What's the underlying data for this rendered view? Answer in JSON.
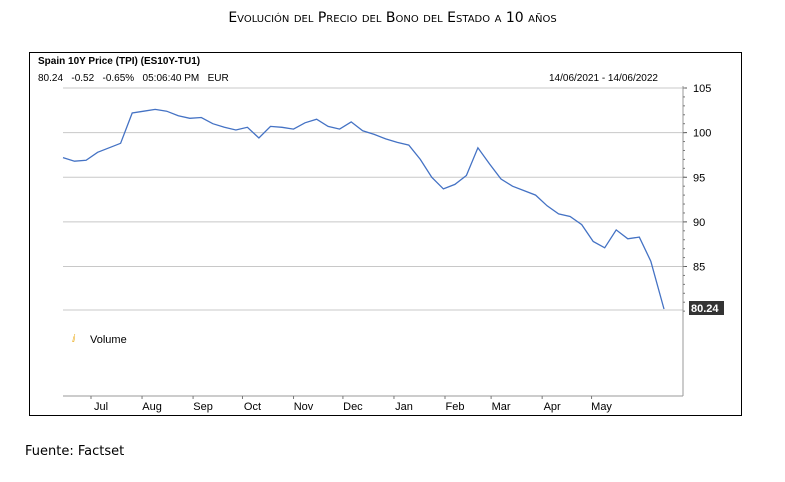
{
  "page_title": "Evolución del Precio del Bono del Estado a 10 años",
  "source_note": "Fuente: Factset",
  "chart_header": {
    "title": "Spain 10Y Price (TPI) (ES10Y-TU1)",
    "last": "80.24",
    "change": "-0.52",
    "change_pct": "-0.65%",
    "time": "05:06:40 PM",
    "currency": "EUR",
    "date_range": "14/06/2021 - 14/06/2022"
  },
  "legend": {
    "volume_label": "Volume",
    "volume_icon": "bar-icon",
    "volume_color": "#e8a200"
  },
  "colors": {
    "line": "#4472c4",
    "grid": "#c8c8c8",
    "last_label_bg": "#333333"
  },
  "chart_data": {
    "type": "line",
    "title": "Spain 10Y Price (TPI) (ES10Y-TU1)",
    "xlabel": "",
    "ylabel": "",
    "x_tick_labels": [
      "Jul",
      "Aug",
      "Sep",
      "Oct",
      "Nov",
      "Dec",
      "Jan",
      "Feb",
      "Mar",
      "Apr",
      "May"
    ],
    "y_ticks": [
      85,
      90,
      95,
      100,
      105
    ],
    "ylim": [
      79,
      105
    ],
    "grid": true,
    "last_value_label": "80.24",
    "series": [
      {
        "x": [
          "2021-06-14",
          "2021-06-21",
          "2021-06-28",
          "2021-07-05",
          "2021-07-12",
          "2021-07-19",
          "2021-07-26",
          "2021-08-02",
          "2021-08-09",
          "2021-08-16",
          "2021-08-23",
          "2021-08-30",
          "2021-09-06",
          "2021-09-13",
          "2021-09-20",
          "2021-09-27",
          "2021-10-04",
          "2021-10-11",
          "2021-10-18",
          "2021-10-25",
          "2021-11-01",
          "2021-11-08",
          "2021-11-15",
          "2021-11-22",
          "2021-11-29",
          "2021-12-06",
          "2021-12-13",
          "2021-12-20",
          "2021-12-27",
          "2022-01-03",
          "2022-01-10",
          "2022-01-17",
          "2022-01-24",
          "2022-01-31",
          "2022-02-07",
          "2022-02-14",
          "2022-02-21",
          "2022-02-28",
          "2022-03-07",
          "2022-03-14",
          "2022-03-21",
          "2022-03-28",
          "2022-04-04",
          "2022-04-11",
          "2022-04-18",
          "2022-04-25",
          "2022-05-02",
          "2022-05-09",
          "2022-05-16",
          "2022-05-23",
          "2022-05-30",
          "2022-06-06",
          "2022-06-14"
        ],
        "values": [
          97.2,
          96.8,
          96.9,
          97.8,
          98.3,
          98.8,
          102.2,
          102.4,
          102.6,
          102.4,
          101.9,
          101.6,
          101.7,
          101.0,
          100.6,
          100.3,
          100.6,
          99.4,
          100.7,
          100.6,
          100.4,
          101.1,
          101.5,
          100.7,
          100.4,
          101.2,
          100.2,
          99.8,
          99.3,
          98.9,
          98.6,
          97.0,
          95.0,
          93.7,
          94.2,
          95.2,
          98.3,
          96.5,
          94.8,
          94.0,
          93.5,
          93.0,
          91.8,
          90.9,
          90.6,
          89.7,
          87.8,
          87.1,
          89.1,
          88.1,
          88.3,
          85.6,
          80.24
        ]
      }
    ]
  }
}
